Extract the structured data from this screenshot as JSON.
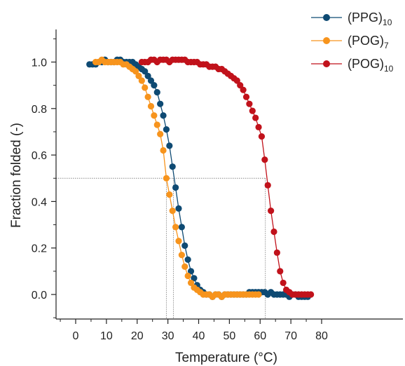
{
  "chart_data": {
    "type": "scatter",
    "title": "",
    "xlabel": "Temperature (°C)",
    "ylabel": "Fraction folded (-)",
    "xlim": [
      -5,
      82
    ],
    "ylim": [
      -0.1,
      1.1
    ],
    "xticks": [
      0,
      10,
      20,
      30,
      40,
      50,
      60,
      70,
      80
    ],
    "yticks": [
      0.0,
      0.2,
      0.4,
      0.6,
      0.8,
      1.0
    ],
    "x_tick_labels": [
      "0",
      "10",
      "20",
      "30",
      "40",
      "50",
      "60",
      "70",
      "80"
    ],
    "y_tick_labels": [
      "0.0",
      "0.2",
      "0.4",
      "0.6",
      "0.8",
      "1.0"
    ],
    "grid": false,
    "legend_position": "top-right",
    "reference_lines": {
      "y": 0.5,
      "x": [
        29.5,
        31.8,
        61.7
      ]
    },
    "series": [
      {
        "name": "(PPG)",
        "subscript": "10",
        "color": "#0e4a73",
        "points": [
          [
            4.5,
            0.99
          ],
          [
            5.5,
            0.99
          ],
          [
            6.5,
            0.99
          ],
          [
            7.5,
            1.0
          ],
          [
            8.5,
            1.0
          ],
          [
            9.5,
            1.01
          ],
          [
            10.5,
            1.0
          ],
          [
            11.5,
            1.0
          ],
          [
            12.5,
            1.0
          ],
          [
            13.5,
            1.01
          ],
          [
            14.5,
            1.01
          ],
          [
            15.5,
            1.0
          ],
          [
            16.5,
            1.0
          ],
          [
            17.5,
            1.0
          ],
          [
            18.5,
            1.0
          ],
          [
            19.5,
            0.99
          ],
          [
            20.5,
            0.98
          ],
          [
            21.5,
            0.97
          ],
          [
            22.5,
            0.96
          ],
          [
            23.5,
            0.94
          ],
          [
            24.5,
            0.92
          ],
          [
            25.5,
            0.9
          ],
          [
            26.5,
            0.87
          ],
          [
            27.5,
            0.82
          ],
          [
            28.5,
            0.77
          ],
          [
            29.5,
            0.71
          ],
          [
            30.5,
            0.64
          ],
          [
            31.5,
            0.55
          ],
          [
            32.5,
            0.46
          ],
          [
            33.5,
            0.37
          ],
          [
            34.5,
            0.29
          ],
          [
            35.5,
            0.21
          ],
          [
            36.5,
            0.15
          ],
          [
            37.5,
            0.1
          ],
          [
            38.5,
            0.07
          ],
          [
            39.5,
            0.04
          ],
          [
            40.5,
            0.02
          ],
          [
            41.5,
            0.01
          ],
          [
            42.5,
            0.0
          ],
          [
            43.5,
            0.0
          ],
          [
            44.5,
            -0.01
          ],
          [
            45.5,
            0.0
          ],
          [
            46.5,
            0.0
          ],
          [
            47.5,
            -0.01
          ],
          [
            48.5,
            0.0
          ],
          [
            49.5,
            0.0
          ],
          [
            50.5,
            0.0
          ],
          [
            51.5,
            0.0
          ],
          [
            52.5,
            0.0
          ],
          [
            53.5,
            0.0
          ],
          [
            54.5,
            0.0
          ],
          [
            55.5,
            0.0
          ],
          [
            56.5,
            0.01
          ],
          [
            57.5,
            0.01
          ],
          [
            58.5,
            0.01
          ],
          [
            59.5,
            0.01
          ],
          [
            60.5,
            0.01
          ],
          [
            61.5,
            0.01
          ],
          [
            62.5,
            0.0
          ],
          [
            63.5,
            0.01
          ],
          [
            64.5,
            0.0
          ],
          [
            65.5,
            0.0
          ],
          [
            66.5,
            0.0
          ],
          [
            67.5,
            0.0
          ],
          [
            68.5,
            0.0
          ],
          [
            69.5,
            -0.01
          ],
          [
            70.5,
            0.0
          ],
          [
            71.5,
            0.0
          ],
          [
            72.5,
            -0.01
          ],
          [
            73.5,
            -0.01
          ],
          [
            74.5,
            -0.01
          ],
          [
            75.5,
            -0.01
          ]
        ]
      },
      {
        "name": "(POG)",
        "subscript": "7",
        "color": "#f7941d",
        "points": [
          [
            6.5,
            1.0
          ],
          [
            7.5,
            1.0
          ],
          [
            8.5,
            1.01
          ],
          [
            9.5,
            1.0
          ],
          [
            10.5,
            1.0
          ],
          [
            11.5,
            1.0
          ],
          [
            12.5,
            1.0
          ],
          [
            13.5,
            1.0
          ],
          [
            14.5,
            1.0
          ],
          [
            15.5,
            0.99
          ],
          [
            16.5,
            0.99
          ],
          [
            17.5,
            0.98
          ],
          [
            18.5,
            0.97
          ],
          [
            19.5,
            0.96
          ],
          [
            20.5,
            0.94
          ],
          [
            21.5,
            0.92
          ],
          [
            22.5,
            0.89
          ],
          [
            23.5,
            0.85
          ],
          [
            24.5,
            0.81
          ],
          [
            25.5,
            0.77
          ],
          [
            26.5,
            0.73
          ],
          [
            27.5,
            0.69
          ],
          [
            28.5,
            0.62
          ],
          [
            29.5,
            0.5
          ],
          [
            30.5,
            0.43
          ],
          [
            31.5,
            0.36
          ],
          [
            32.5,
            0.29
          ],
          [
            33.5,
            0.23
          ],
          [
            34.5,
            0.17
          ],
          [
            35.5,
            0.12
          ],
          [
            36.5,
            0.08
          ],
          [
            37.5,
            0.05
          ],
          [
            38.5,
            0.03
          ],
          [
            39.5,
            0.02
          ],
          [
            40.5,
            0.01
          ],
          [
            41.5,
            0.0
          ],
          [
            42.5,
            0.0
          ],
          [
            43.5,
            0.0
          ],
          [
            44.5,
            -0.01
          ],
          [
            45.5,
            0.0
          ],
          [
            46.5,
            0.0
          ],
          [
            47.5,
            -0.01
          ],
          [
            48.5,
            0.0
          ],
          [
            49.5,
            0.0
          ],
          [
            50.5,
            0.0
          ],
          [
            51.5,
            0.0
          ],
          [
            52.5,
            0.0
          ],
          [
            53.5,
            0.0
          ],
          [
            54.5,
            0.0
          ],
          [
            55.5,
            0.0
          ],
          [
            56.5,
            0.0
          ],
          [
            57.5,
            0.0
          ],
          [
            58.5,
            0.0
          ],
          [
            59.5,
            0.0
          ]
        ]
      },
      {
        "name": "(POG)",
        "subscript": "10",
        "color": "#c1121b",
        "points": [
          [
            21.5,
            1.0
          ],
          [
            22.5,
            1.0
          ],
          [
            23.5,
            1.0
          ],
          [
            24.5,
            1.01
          ],
          [
            25.5,
            1.01
          ],
          [
            26.5,
            1.0
          ],
          [
            27.5,
            1.01
          ],
          [
            28.5,
            1.01
          ],
          [
            29.5,
            1.01
          ],
          [
            30.5,
            1.0
          ],
          [
            31.5,
            1.01
          ],
          [
            32.5,
            1.01
          ],
          [
            33.5,
            1.01
          ],
          [
            34.5,
            1.01
          ],
          [
            35.5,
            1.01
          ],
          [
            36.5,
            1.0
          ],
          [
            37.5,
            1.0
          ],
          [
            38.5,
            1.0
          ],
          [
            39.5,
            1.0
          ],
          [
            40.5,
            0.99
          ],
          [
            41.5,
            0.99
          ],
          [
            42.5,
            0.99
          ],
          [
            43.5,
            0.98
          ],
          [
            44.5,
            0.98
          ],
          [
            45.5,
            0.98
          ],
          [
            46.5,
            0.97
          ],
          [
            47.5,
            0.97
          ],
          [
            48.5,
            0.96
          ],
          [
            49.5,
            0.95
          ],
          [
            50.5,
            0.94
          ],
          [
            51.5,
            0.93
          ],
          [
            52.5,
            0.92
          ],
          [
            53.5,
            0.9
          ],
          [
            54.5,
            0.88
          ],
          [
            55.5,
            0.85
          ],
          [
            56.5,
            0.82
          ],
          [
            57.5,
            0.79
          ],
          [
            58.5,
            0.76
          ],
          [
            59.5,
            0.72
          ],
          [
            60.5,
            0.68
          ],
          [
            61.5,
            0.58
          ],
          [
            62.5,
            0.47
          ],
          [
            63.5,
            0.36
          ],
          [
            64.5,
            0.27
          ],
          [
            65.5,
            0.18
          ],
          [
            66.5,
            0.1
          ],
          [
            67.5,
            0.05
          ],
          [
            68.5,
            0.02
          ],
          [
            69.5,
            0.01
          ],
          [
            70.5,
            0.0
          ],
          [
            71.5,
            0.0
          ],
          [
            72.5,
            0.0
          ],
          [
            73.5,
            0.0
          ],
          [
            74.5,
            0.0
          ],
          [
            75.5,
            0.0
          ],
          [
            76.5,
            0.0
          ]
        ]
      }
    ]
  }
}
